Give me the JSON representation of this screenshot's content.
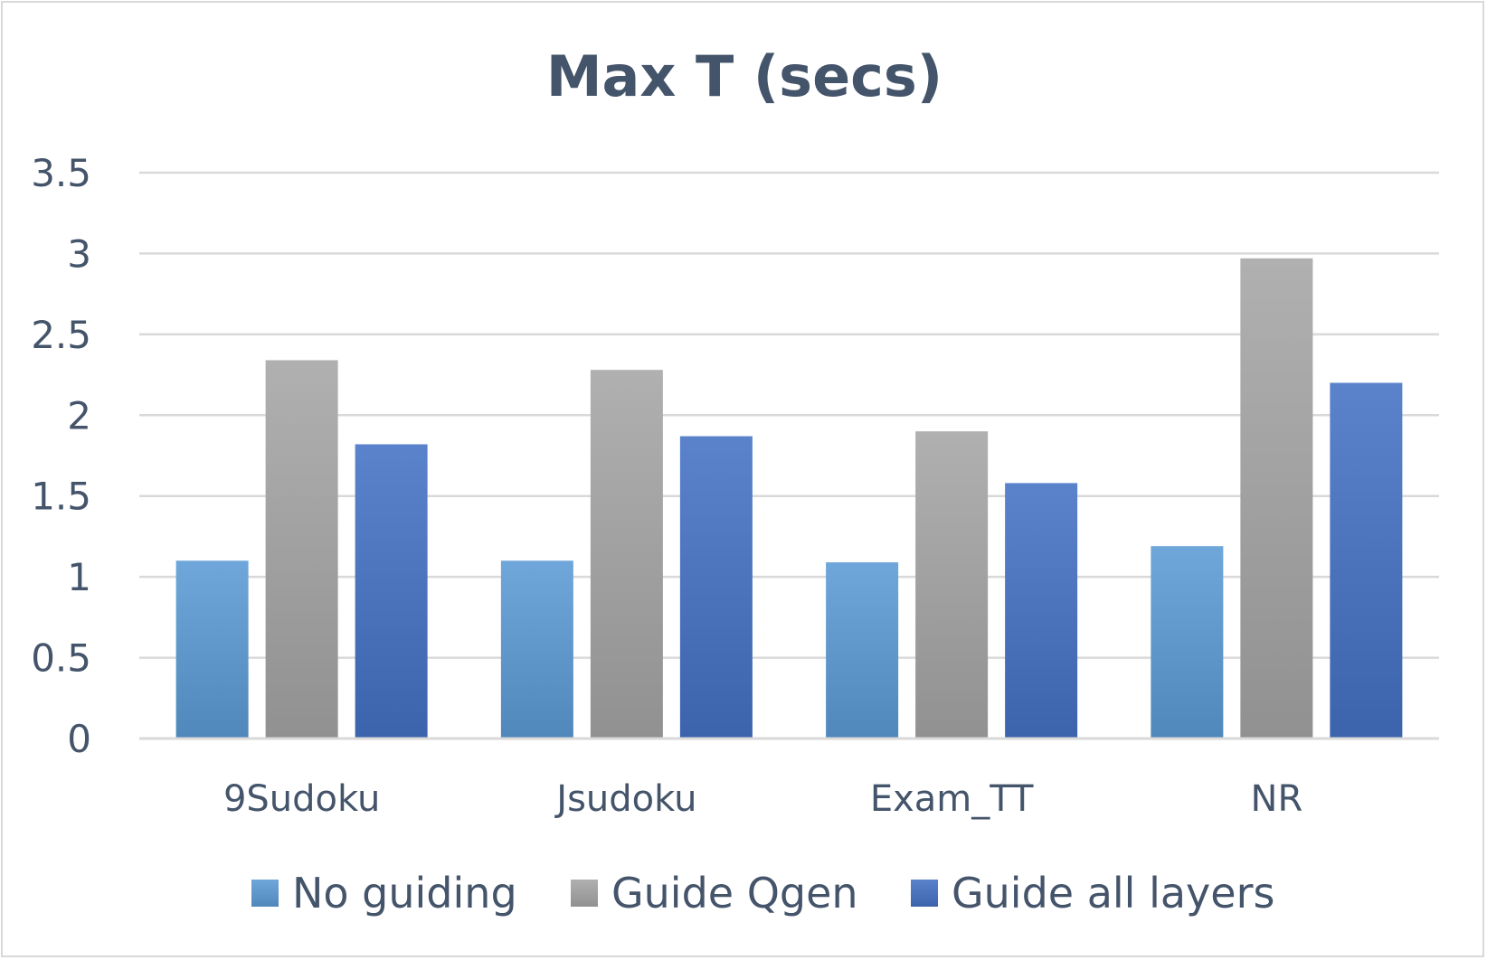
{
  "chart_data": {
    "type": "bar",
    "title": "Max T (secs)",
    "xlabel": "",
    "ylabel": "",
    "ylim": [
      0,
      3.5
    ],
    "yticks": [
      "0",
      "0.5",
      "1",
      "1.5",
      "2",
      "2.5",
      "3",
      "3.5"
    ],
    "grid": true,
    "legend_position": "bottom",
    "categories": [
      "9Sudoku",
      "Jsudoku",
      "Exam_TT",
      "NR"
    ],
    "series": [
      {
        "name": "No guiding",
        "color": "#5b9bd5",
        "values": [
          1.1,
          1.1,
          1.09,
          1.19
        ]
      },
      {
        "name": "Guide Qgen",
        "color": "#a5a5a5",
        "values": [
          2.34,
          2.28,
          1.9,
          2.97
        ]
      },
      {
        "name": "Guide all layers",
        "color": "#4472c4",
        "values": [
          1.82,
          1.87,
          1.58,
          2.2
        ]
      }
    ]
  }
}
